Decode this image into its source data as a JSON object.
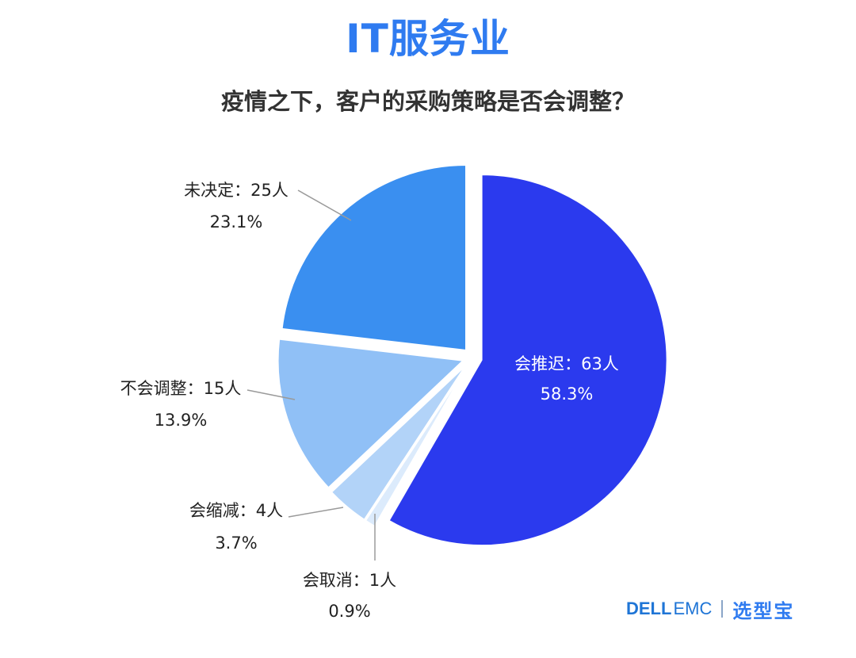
{
  "title": "IT服务业",
  "subtitle": "疫情之下，客户的采购策略是否会调整？",
  "brand": {
    "dell": "DELL",
    "emc": "EMC",
    "product": "选型宝"
  },
  "chart_data": {
    "type": "pie",
    "title": "IT服务业",
    "subtitle": "疫情之下，客户的采购策略是否会调整？",
    "slices": [
      {
        "name": "会推迟",
        "count": "63人",
        "label": "会推迟：63人",
        "value": 63,
        "percent_label": "58.3%",
        "color": "#2b3aee"
      },
      {
        "name": "会取消",
        "count": "1人",
        "label": "会取消：1人",
        "value": 1,
        "percent_label": "0.9%",
        "color": "#dcebfc"
      },
      {
        "name": "会缩减",
        "count": "4人",
        "label": "会缩减：4人",
        "value": 4,
        "percent_label": "3.7%",
        "color": "#b2d3f8"
      },
      {
        "name": "不会调整",
        "count": "15人",
        "label": "不会调整：15人",
        "value": 15,
        "percent_label": "13.9%",
        "color": "#90c0f6"
      },
      {
        "name": "未决定",
        "count": "25人",
        "label": "未决定：25人",
        "value": 25,
        "percent_label": "23.1%",
        "color": "#3a8ff0"
      }
    ],
    "start_angle": "12 o'clock",
    "direction": "clockwise",
    "legend": "none"
  }
}
